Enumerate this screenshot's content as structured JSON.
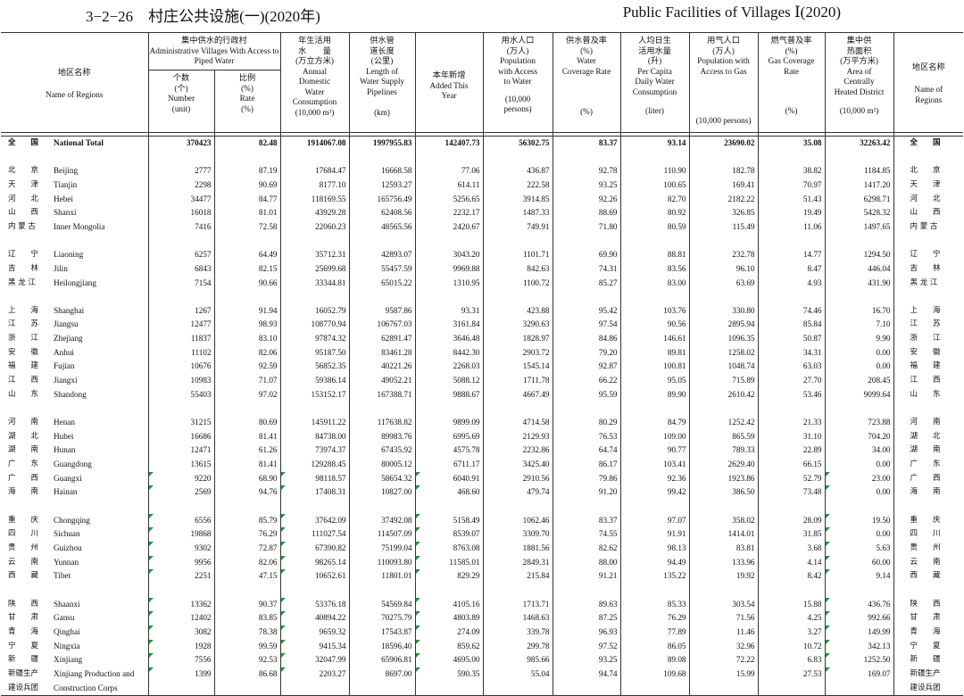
{
  "title": {
    "cn": "3−2−26　村庄公共设施(一)(2020年)",
    "en": "Public Facilities of Villages Ⅰ(2020)"
  },
  "headers": {
    "region_left": {
      "cn": "地区名称",
      "en": "Name of Regions"
    },
    "piped": {
      "cn": "集中供水的行政村",
      "en": "Administrative Villages With Access to Piped Water"
    },
    "number": {
      "cn": "个数\n(个)",
      "en": "Number\n(unit)"
    },
    "rate": {
      "cn": "比例\n(%)",
      "en": "Rate\n(%)"
    },
    "domestic": {
      "cn": "年生活用\n水　　量\n(万立方米)",
      "en": "Annual\nDomestic\nWater\nConsumption",
      "unit": "(10,000 m³)"
    },
    "pipelines": {
      "cn": "供水管\n道长度\n(公里)",
      "en": "Length of\nWater Supply\nPipelines",
      "unit": "(km)"
    },
    "added": {
      "cn": "本年新增",
      "en": "Added This\nYear"
    },
    "population": {
      "cn": "用水人口\n(万人)",
      "en": "Population\nwith Access\nto Water",
      "unit": "(10,000\npersons)"
    },
    "coverage": {
      "cn": "供水普及率\n(%)",
      "en": "Water\nCoverage Rate",
      "unit": "(%)"
    },
    "percapita": {
      "cn": "人均日生\n活用水量\n(升)",
      "en": "Per Capita\nDaily Water\nConsumption",
      "unit": "(liter)"
    },
    "gaspop": {
      "cn": "用气人口\n(万人)",
      "en": "Population with\nAccess to Gas",
      "unit": "(10,000 persons)"
    },
    "gasrate": {
      "cn": "燃气普及率\n(%)",
      "en": "Gas Coverage\nRate",
      "unit": "(%)"
    },
    "heated": {
      "cn": "集中供\n热面积\n(万平方米)",
      "en": "Area of\nCentrally\nHeated District",
      "unit": "(10,000 m²)"
    },
    "region_right": {
      "cn": "地区名称",
      "en": "Name of\nRegions"
    }
  },
  "rows": [
    {
      "cn": "全　　国",
      "en": "National Total",
      "v": [
        "370423",
        "82.48",
        "1914067.08",
        "1997955.83",
        "142407.73",
        "56302.75",
        "83.37",
        "93.14",
        "23690.02",
        "35.08",
        "32263.42"
      ],
      "total": true
    },
    {
      "blank": true
    },
    {
      "cn": "北　　京",
      "en": "Beijing",
      "v": [
        "2777",
        "87.19",
        "17684.47",
        "16668.58",
        "77.06",
        "436.87",
        "92.78",
        "110.90",
        "182.78",
        "38.82",
        "1184.85"
      ]
    },
    {
      "cn": "天　　津",
      "en": "Tianjin",
      "v": [
        "2298",
        "90.69",
        "8177.10",
        "12593.27",
        "614.11",
        "222.58",
        "93.25",
        "100.65",
        "169.41",
        "70.97",
        "1417.20"
      ]
    },
    {
      "cn": "河　　北",
      "en": "Hebei",
      "v": [
        "34477",
        "84.77",
        "118169.55",
        "165756.49",
        "5256.65",
        "3914.85",
        "92.26",
        "82.70",
        "2182.22",
        "51.43",
        "6298.71"
      ]
    },
    {
      "cn": "山　　西",
      "en": "Shanxi",
      "v": [
        "16018",
        "81.01",
        "43929.28",
        "62408.56",
        "2232.17",
        "1487.33",
        "88.69",
        "80.92",
        "326.85",
        "19.49",
        "5428.32"
      ]
    },
    {
      "cn": "内 蒙 古",
      "en": "Inner Mongolia",
      "v": [
        "7416",
        "72.58",
        "22060.23",
        "48565.56",
        "2420.67",
        "749.91",
        "71.80",
        "80.59",
        "115.49",
        "11.06",
        "1497.65"
      ]
    },
    {
      "blank": true
    },
    {
      "cn": "辽　　宁",
      "en": "Liaoning",
      "v": [
        "6257",
        "64.49",
        "35712.31",
        "42893.07",
        "3043.20",
        "1101.71",
        "69.90",
        "88.81",
        "232.78",
        "14.77",
        "1294.50"
      ]
    },
    {
      "cn": "吉　　林",
      "en": "Jilin",
      "v": [
        "6843",
        "82.15",
        "25699.68",
        "55457.59",
        "9969.88",
        "842.63",
        "74.31",
        "83.56",
        "96.10",
        "8.47",
        "446.04"
      ]
    },
    {
      "cn": "黑 龙 江",
      "en": "Heilongjiang",
      "v": [
        "7154",
        "90.66",
        "33344.81",
        "65015.22",
        "1310.95",
        "1100.72",
        "85.27",
        "83.00",
        "63.69",
        "4.93",
        "431.90"
      ]
    },
    {
      "blank": true
    },
    {
      "cn": "上　　海",
      "en": "Shanghai",
      "v": [
        "1267",
        "91.94",
        "16052.79",
        "9587.86",
        "93.31",
        "423.88",
        "95.42",
        "103.76",
        "330.80",
        "74.46",
        "16.70"
      ]
    },
    {
      "cn": "江　　苏",
      "en": "Jiangsu",
      "v": [
        "12477",
        "98.93",
        "108770.94",
        "106767.03",
        "3161.84",
        "3290.63",
        "97.54",
        "90.56",
        "2895.94",
        "85.84",
        "7.10"
      ]
    },
    {
      "cn": "浙　　江",
      "en": "Zhejiang",
      "v": [
        "11837",
        "83.10",
        "97874.32",
        "62891.47",
        "3646.48",
        "1828.97",
        "84.86",
        "146.61",
        "1096.35",
        "50.87",
        "9.90"
      ]
    },
    {
      "cn": "安　　徽",
      "en": "Anhui",
      "v": [
        "11102",
        "82.06",
        "95187.50",
        "83461.28",
        "8442.30",
        "2903.72",
        "79.20",
        "89.81",
        "1258.02",
        "34.31",
        "0.00"
      ]
    },
    {
      "cn": "福　　建",
      "en": "Fujian",
      "v": [
        "10676",
        "92.59",
        "56852.35",
        "40221.26",
        "2268.03",
        "1545.14",
        "92.87",
        "100.81",
        "1048.74",
        "63.03",
        "0.00"
      ]
    },
    {
      "cn": "江　　西",
      "en": "Jiangxi",
      "v": [
        "10983",
        "71.07",
        "59386.14",
        "49052.21",
        "5088.12",
        "1711.78",
        "66.22",
        "95.05",
        "715.89",
        "27.70",
        "208.45"
      ]
    },
    {
      "cn": "山　　东",
      "en": "Shandong",
      "v": [
        "55403",
        "97.02",
        "153152.17",
        "167388.71",
        "9888.67",
        "4667.49",
        "95.59",
        "89.90",
        "2610.42",
        "53.46",
        "9099.64"
      ]
    },
    {
      "blank": true
    },
    {
      "cn": "河　　南",
      "en": "Henan",
      "v": [
        "31215",
        "80.69",
        "145911.22",
        "117638.82",
        "9899.09",
        "4714.58",
        "80.29",
        "84.79",
        "1252.42",
        "21.33",
        "723.88"
      ]
    },
    {
      "cn": "湖　　北",
      "en": "Hubei",
      "v": [
        "16686",
        "81.41",
        "84738.00",
        "89983.76",
        "6995.69",
        "2129.93",
        "76.53",
        "109.00",
        "865.59",
        "31.10",
        "704.20"
      ]
    },
    {
      "cn": "湖　　南",
      "en": "Hunan",
      "v": [
        "12471",
        "61.26",
        "73974.37",
        "67435.92",
        "4575.78",
        "2232.86",
        "64.74",
        "90.77",
        "789.33",
        "22.89",
        "34.00"
      ]
    },
    {
      "cn": "广　　东",
      "en": "Guangdong",
      "v": [
        "13615",
        "81.41",
        "129288.45",
        "80005.12",
        "6711.17",
        "3425.40",
        "86.17",
        "103.41",
        "2629.40",
        "66.15",
        "0.00"
      ]
    },
    {
      "cn": "广　　西",
      "en": "Guangxi",
      "v": [
        "9220",
        "68.90",
        "98118.57",
        "58654.32",
        "6040.91",
        "2910.56",
        "79.86",
        "92.36",
        "1923.86",
        "52.79",
        "23.00"
      ],
      "marks": [
        0,
        2,
        4,
        10
      ]
    },
    {
      "cn": "海　　南",
      "en": "Hainan",
      "v": [
        "2569",
        "94.76",
        "17408.31",
        "10827.00",
        "468.60",
        "479.74",
        "91.20",
        "99.42",
        "386.50",
        "73.48",
        "0.00"
      ],
      "marks": [
        0,
        2,
        4,
        10
      ]
    },
    {
      "blank": true
    },
    {
      "cn": "重　　庆",
      "en": "Chongqing",
      "v": [
        "6556",
        "85.79",
        "37642.09",
        "37492.08",
        "5158.49",
        "1062.46",
        "83.37",
        "97.07",
        "358.02",
        "28.09",
        "19.50"
      ],
      "marks": [
        0,
        2,
        4,
        10
      ]
    },
    {
      "cn": "四　　川",
      "en": "Sichuan",
      "v": [
        "19868",
        "76.29",
        "111027.54",
        "114507.09",
        "8539.07",
        "3309.70",
        "74.55",
        "91.91",
        "1414.01",
        "31.85",
        "0.00"
      ],
      "marks": [
        0,
        2,
        4,
        10
      ]
    },
    {
      "cn": "贵　　州",
      "en": "Guizhou",
      "v": [
        "9302",
        "72.87",
        "67390.82",
        "75199.04",
        "8763.08",
        "1881.56",
        "82.62",
        "98.13",
        "83.81",
        "3.68",
        "5.63"
      ],
      "marks": [
        0,
        2,
        4,
        10
      ]
    },
    {
      "cn": "云　　南",
      "en": "Yunnan",
      "v": [
        "9956",
        "82.06",
        "98265.14",
        "110093.80",
        "11585.01",
        "2849.31",
        "88.00",
        "94.49",
        "133.96",
        "4.14",
        "60.00"
      ],
      "marks": [
        0,
        2,
        4,
        10
      ]
    },
    {
      "cn": "西　　藏",
      "en": "Tibet",
      "v": [
        "2251",
        "47.15",
        "10652.61",
        "11801.01",
        "829.29",
        "215.84",
        "91.21",
        "135.22",
        "19.92",
        "8.42",
        "9.14"
      ],
      "marks": [
        0,
        2,
        4,
        10
      ]
    },
    {
      "blank": true
    },
    {
      "cn": "陕　　西",
      "en": "Shaanxi",
      "v": [
        "13362",
        "90.37",
        "53376.18",
        "54569.84",
        "4105.16",
        "1713.71",
        "89.63",
        "85.33",
        "303.54",
        "15.88",
        "436.76"
      ],
      "marks": [
        0,
        2,
        4,
        10
      ]
    },
    {
      "cn": "甘　　肃",
      "en": "Gansu",
      "v": [
        "12402",
        "83.85",
        "40894.22",
        "70275.79",
        "4803.89",
        "1468.63",
        "87.25",
        "76.29",
        "71.56",
        "4.25",
        "992.66"
      ],
      "marks": [
        0,
        2,
        4,
        10
      ]
    },
    {
      "cn": "青　　海",
      "en": "Qinghai",
      "v": [
        "3082",
        "78.38",
        "9659.32",
        "17543.87",
        "274.09",
        "339.78",
        "96.93",
        "77.89",
        "11.46",
        "3.27",
        "149.99"
      ],
      "marks": [
        0,
        2,
        4,
        10
      ]
    },
    {
      "cn": "宁　　夏",
      "en": "Ningxia",
      "v": [
        "1928",
        "99.59",
        "9415.34",
        "18596.40",
        "859.62",
        "299.78",
        "97.52",
        "86.05",
        "32.96",
        "10.72",
        "342.13"
      ],
      "marks": [
        0,
        2,
        4,
        10
      ]
    },
    {
      "cn": "新　　疆",
      "en": "Xinjiang",
      "v": [
        "7556",
        "92.53",
        "32047.99",
        "65906.81",
        "4695.00",
        "985.66",
        "93.25",
        "89.08",
        "72.22",
        "6.83",
        "1252.50"
      ],
      "marks": [
        0,
        2,
        4,
        10
      ]
    },
    {
      "cn": "新疆生产",
      "en": "Xinjiang Production and",
      "v": [
        "1399",
        "86.68",
        "2203.27",
        "8697.00",
        "590.35",
        "55.04",
        "94.74",
        "109.68",
        "15.99",
        "27.53",
        "169.07"
      ],
      "marks": [
        0,
        2,
        4,
        10
      ]
    },
    {
      "cn": "建设兵团",
      "en": "Construction Corps",
      "v": [
        "",
        "",
        "",
        "",
        "",
        "",
        "",
        "",
        "",
        "",
        ""
      ],
      "cont": true
    }
  ]
}
